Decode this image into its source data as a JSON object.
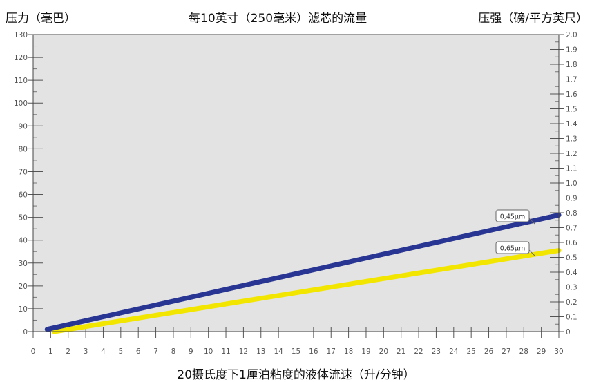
{
  "header": {
    "left_axis_title": "压力（毫巴）",
    "title": "每10英寸（250毫米）滤芯的流量",
    "right_axis_title": "压强（磅/平方英尺）"
  },
  "chart_data": {
    "type": "line",
    "title": "每10英寸（250毫米）滤芯的流量",
    "xlabel": "20摄氏度下1厘泊粘度的液体流速（升/分钟）",
    "ylabel": "压力（毫巴）",
    "y2label": "压强（磅/平方英尺）",
    "xlim": [
      0,
      30
    ],
    "ylim": [
      0,
      130
    ],
    "y2lim": [
      0,
      2.0
    ],
    "x_ticks": [
      "0",
      "1",
      "2",
      "3",
      "4",
      "5",
      "6",
      "7",
      "8",
      "9",
      "10",
      "11",
      "12",
      "13",
      "14",
      "15",
      "16",
      "17",
      "18",
      "19",
      "20",
      "21",
      "22",
      "23",
      "24",
      "25",
      "26",
      "27",
      "28",
      "29",
      "30"
    ],
    "y_ticks": [
      "0",
      "10",
      "20",
      "30",
      "40",
      "50",
      "60",
      "70",
      "80",
      "90",
      "100",
      "110",
      "120",
      "130"
    ],
    "y2_ticks": [
      "0",
      "0.1",
      "0.2",
      "0.3",
      "0.4",
      "0.5",
      "0.6",
      "0.7",
      "0.8",
      "0.9",
      "1.0",
      "1.1",
      "1.2",
      "1.3",
      "1.4",
      "1.5",
      "1.6",
      "1.7",
      "1.8",
      "1.9",
      "2.0"
    ],
    "grid": false,
    "plot_background": "#e3e3e3",
    "series": [
      {
        "name": "0,45μm",
        "color": "#283593",
        "x": [
          0.8,
          30
        ],
        "y": [
          1,
          51
        ]
      },
      {
        "name": "0,65μm",
        "color": "#f2e600",
        "x": [
          1.2,
          30
        ],
        "y": [
          0,
          35.5
        ]
      }
    ]
  }
}
